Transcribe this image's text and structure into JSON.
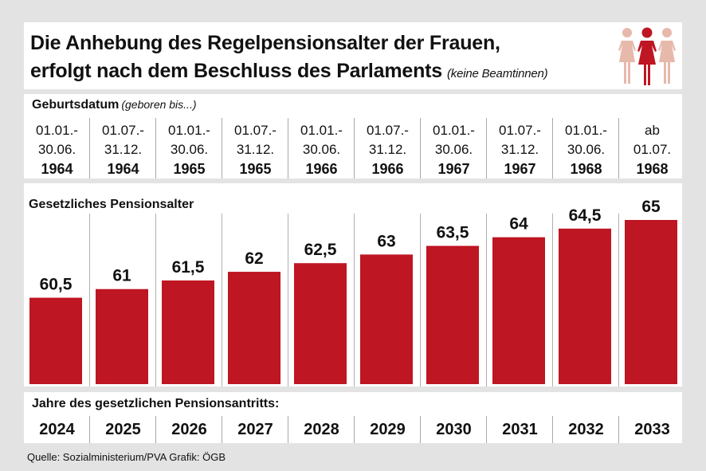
{
  "title": {
    "line1": "Die Anhebung des Regelpensionsalter der Frauen,",
    "line2": "erfolgt nach dem Beschluss des Parlaments",
    "note": "(keine Beamtinnen)"
  },
  "birth": {
    "heading": "Geburtsdatum",
    "subheading": "(geboren bis...)",
    "cells": [
      {
        "line1": "01.01.-",
        "line2": "30.06.",
        "year": "1964"
      },
      {
        "line1": "01.07.-",
        "line2": "31.12.",
        "year": "1964"
      },
      {
        "line1": "01.01.-",
        "line2": "30.06.",
        "year": "1965"
      },
      {
        "line1": "01.07.-",
        "line2": "31.12.",
        "year": "1965"
      },
      {
        "line1": "01.01.-",
        "line2": "30.06.",
        "year": "1966"
      },
      {
        "line1": "01.07.-",
        "line2": "31.12.",
        "year": "1966"
      },
      {
        "line1": "01.01.-",
        "line2": "30.06.",
        "year": "1967"
      },
      {
        "line1": "01.07.-",
        "line2": "31.12.",
        "year": "1967"
      },
      {
        "line1": "01.01.-",
        "line2": "30.06.",
        "year": "1968"
      },
      {
        "line1": "ab",
        "line2": "01.07.",
        "year": "1968"
      }
    ]
  },
  "chart_data": {
    "type": "bar",
    "ylabel": "Gesetzliches Pensionsalter",
    "xlabel": "Jahre des gesetzlichen Pensionsantritts:",
    "categories": [
      "2024",
      "2025",
      "2026",
      "2027",
      "2028",
      "2029",
      "2030",
      "2031",
      "2032",
      "2033"
    ],
    "values": [
      60.5,
      61,
      61.5,
      62,
      62.5,
      63,
      63.5,
      64,
      64.5,
      65
    ],
    "value_labels": [
      "60,5",
      "61",
      "61,5",
      "62",
      "62,5",
      "63",
      "63,5",
      "64",
      "64,5",
      "65"
    ],
    "ylim": [
      55.5,
      65
    ],
    "grid": false,
    "legend": "none"
  },
  "source": "Quelle: Sozialministerium/PVA Grafik: ÖGB",
  "colors": {
    "bar": "#be1622",
    "background": "#e3e3e3",
    "panel": "#ffffff",
    "icon_light": "#e7b9ab",
    "icon_accent": "#be1622"
  },
  "icons": [
    "three-women-icon"
  ]
}
